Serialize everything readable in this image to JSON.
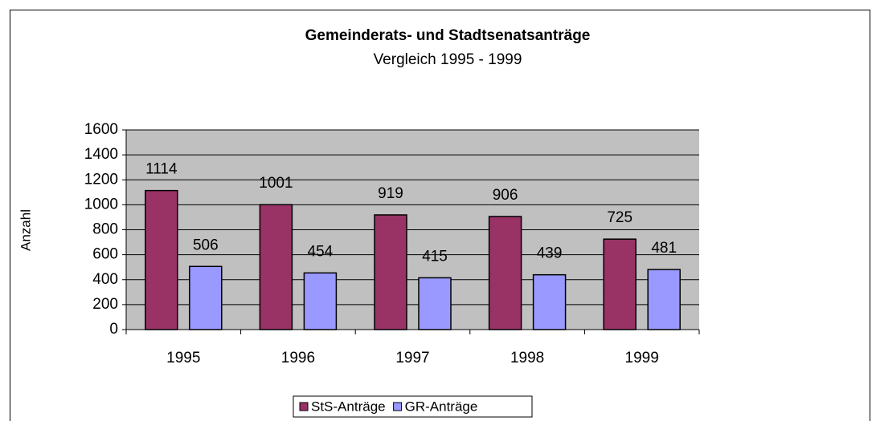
{
  "chart_data": {
    "type": "bar",
    "title": "Gemeinderats- und Stadtsenatsanträge",
    "subtitle": "Vergleich 1995 - 1999",
    "y_label": "Anzahl",
    "categories": [
      "1995",
      "1996",
      "1997",
      "1998",
      "1999"
    ],
    "series": [
      {
        "name": "StS-Anträge",
        "color": "#993366",
        "values": [
          1114,
          1001,
          919,
          906,
          725
        ]
      },
      {
        "name": "GR-Anträge",
        "color": "#9999ff",
        "values": [
          506,
          454,
          415,
          439,
          481
        ]
      }
    ],
    "ylim": [
      0,
      1600
    ],
    "yticks": [
      0,
      200,
      400,
      600,
      800,
      1000,
      1200,
      1400,
      1600
    ],
    "grid": true,
    "legend": "bottom"
  }
}
